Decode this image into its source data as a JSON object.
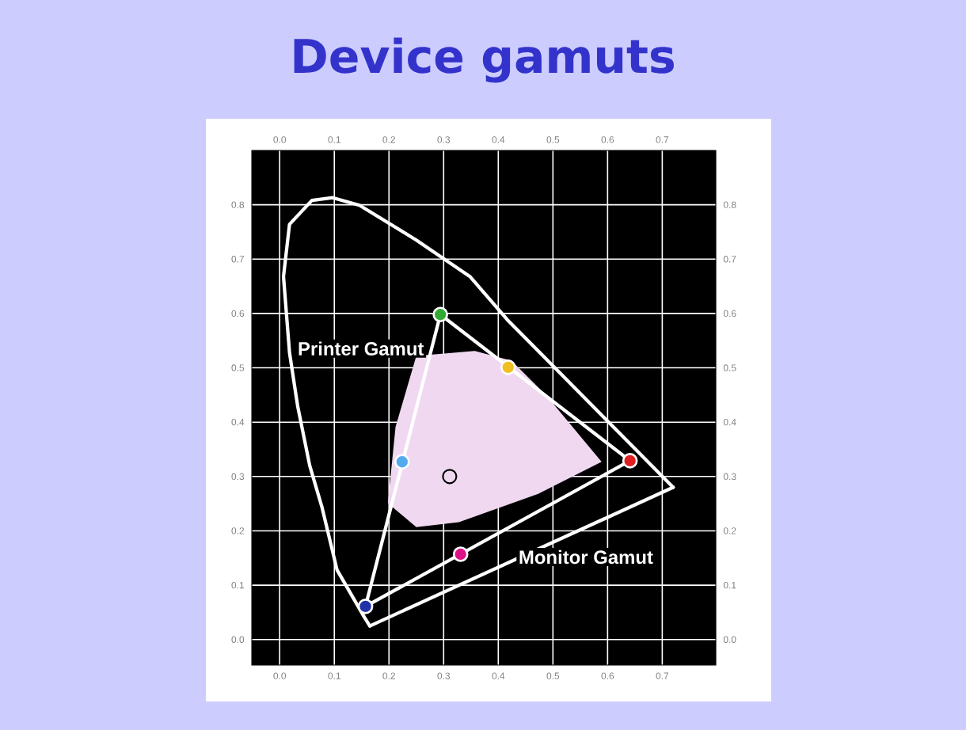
{
  "chart_data": {
    "type": "line",
    "title": "Device gamuts",
    "xlim": [
      -0.051,
      0.798
    ],
    "ylim": [
      -0.047,
      0.9
    ],
    "xticks": [
      {
        "value": 0,
        "label": "0.0"
      },
      0.1,
      0.2,
      0.3,
      0.4,
      0.5,
      0.6,
      0.7
    ],
    "yticks": [
      {
        "value": 0,
        "label": "0.0"
      },
      0.1,
      0.2,
      0.3,
      0.4,
      0.5,
      0.6,
      0.7,
      0.8
    ],
    "x2lim": [
      -0.051,
      0.798
    ],
    "y2lim": [
      -0.047,
      0.9
    ],
    "x2ticks": [
      {
        "value": 0,
        "label": "0.0"
      },
      0.1,
      0.2,
      0.3,
      0.4,
      0.5,
      0.6,
      0.7
    ],
    "y2ticks": [
      {
        "value": 0,
        "label": "0.0"
      },
      0.1,
      0.2,
      0.3,
      0.4,
      0.5,
      0.6,
      0.7,
      0.8
    ],
    "grid": true,
    "series": [
      {
        "color": "#ffffff",
        "x": [
          0.165,
          0.155,
          0.105,
          0.077,
          0.055,
          0.033,
          0.018,
          0.007,
          0.018,
          0.059,
          0.097,
          0.146,
          0.25,
          0.348,
          0.416,
          0.72
        ],
        "values": [
          0.025,
          0.041,
          0.128,
          0.245,
          0.32,
          0.429,
          0.528,
          0.668,
          0.764,
          0.808,
          0.813,
          0.799,
          0.735,
          0.668,
          0.589,
          0.28
        ]
      },
      {
        "color": "#ffffff",
        "x": [
          0.165,
          0.72
        ],
        "values": [
          0.025,
          0.28
        ]
      },
      {
        "type": "area",
        "color": "#f0d8f0",
        "x": [
          0.25,
          0.357,
          0.424,
          0.488,
          0.589,
          0.473,
          0.328,
          0.25,
          0.198,
          0.212
        ],
        "values": [
          0.522,
          0.531,
          0.513,
          0.449,
          0.327,
          0.268,
          0.216,
          0.207,
          0.251,
          0.391
        ]
      },
      {
        "color": "#ffffff",
        "x": [
          0.294,
          0.641
        ],
        "values": [
          0.598,
          0.329
        ]
      },
      {
        "color": "#ffffff",
        "x": [
          0.157,
          0.641
        ],
        "values": [
          0.061,
          0.329
        ]
      },
      {
        "color": "#ffffff",
        "x": [
          0.157,
          0.294
        ],
        "values": [
          0.061,
          0.598
        ]
      },
      {
        "type": "scatter",
        "marker": "circle",
        "colors": [
          "#33aa33",
          "#f0c020",
          "#e02020",
          "#dd1188",
          "#2233aa",
          "#55aaee"
        ],
        "x": [
          0.294,
          0.418,
          0.641,
          0.331,
          0.157,
          0.224
        ],
        "values": [
          0.598,
          0.501,
          0.329,
          0.157,
          0.061,
          0.327
        ]
      },
      {
        "type": "scatter",
        "marker": "circle",
        "color": "#000000",
        "x": [
          0.311
        ],
        "values": [
          0.3
        ]
      }
    ],
    "annotations": [
      "Printer Gamut",
      "Monitor Gamut"
    ]
  }
}
